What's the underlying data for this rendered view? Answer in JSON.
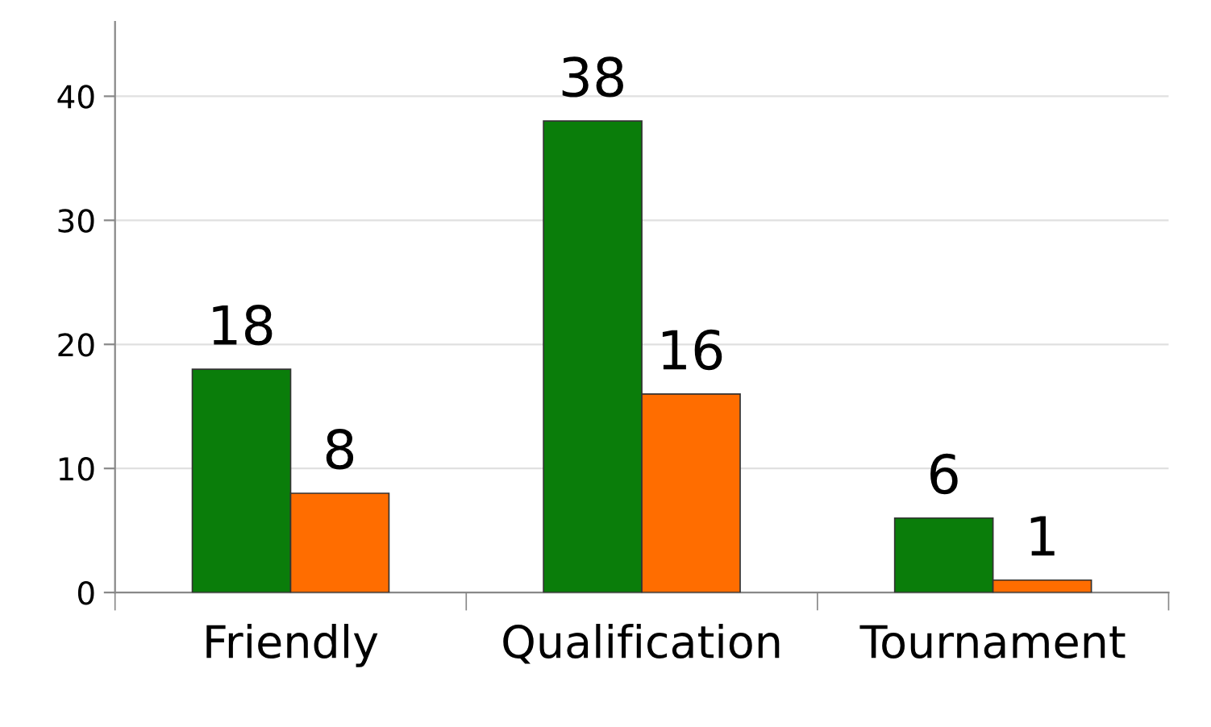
{
  "chart_data": {
    "type": "bar",
    "categories": [
      "Friendly",
      "Qualification",
      "Tournament"
    ],
    "series": [
      {
        "color": "#0a7d0a",
        "values": [
          18,
          38,
          6
        ]
      },
      {
        "color": "#ff6d00",
        "values": [
          8,
          16,
          1
        ]
      }
    ],
    "ylim": [
      0,
      46
    ],
    "yticks": [
      0,
      10,
      20,
      30,
      40
    ],
    "grid": "y",
    "data_labels": true
  }
}
